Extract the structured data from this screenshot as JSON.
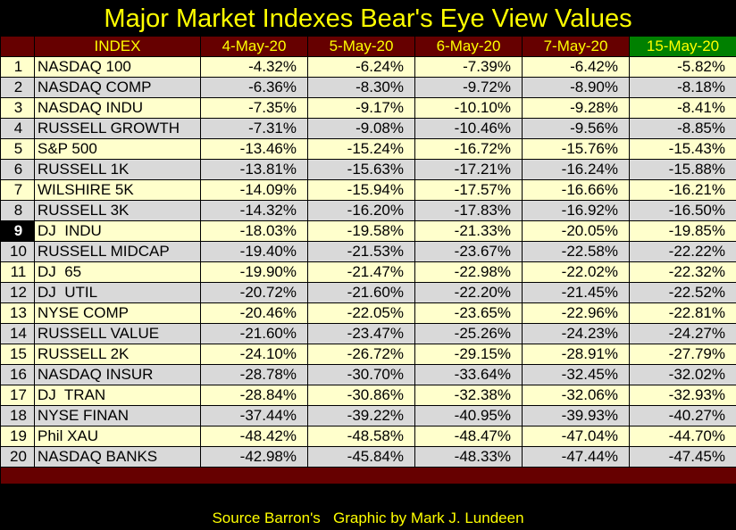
{
  "title": "Major Market Indexes Bear's Eye View Values",
  "colors": {
    "background": "#000000",
    "title": "#FFFF00",
    "header_bg": "#660000",
    "header_highlight_bg": "#008000",
    "row_odd": "#FFFFCC",
    "row_even": "#D9D9D9"
  },
  "footer": {
    "source": "Source Barron's",
    "credit": "Graphic by Mark J. Lundeen"
  },
  "chart_data": {
    "type": "table",
    "title": "Major Market Indexes Bear's Eye View Values",
    "columns": [
      "",
      "INDEX",
      "4-May-20",
      "5-May-20",
      "6-May-20",
      "7-May-20",
      "15-May-20"
    ],
    "highlighted_column": "15-May-20",
    "highlighted_rank": "9",
    "rows": [
      {
        "rank": "1",
        "name": "NASDAQ 100",
        "values": [
          "-4.32%",
          "-6.24%",
          "-7.39%",
          "-6.42%",
          "-5.82%"
        ]
      },
      {
        "rank": "2",
        "name": "NASDAQ COMP",
        "values": [
          "-6.36%",
          "-8.30%",
          "-9.72%",
          "-8.90%",
          "-8.18%"
        ]
      },
      {
        "rank": "3",
        "name": "NASDAQ INDU",
        "values": [
          "-7.35%",
          "-9.17%",
          "-10.10%",
          "-9.28%",
          "-8.41%"
        ]
      },
      {
        "rank": "4",
        "name": "RUSSELL GROWTH",
        "values": [
          "-7.31%",
          "-9.08%",
          "-10.46%",
          "-9.56%",
          "-8.85%"
        ]
      },
      {
        "rank": "5",
        "name": "S&P 500",
        "values": [
          "-13.46%",
          "-15.24%",
          "-16.72%",
          "-15.76%",
          "-15.43%"
        ]
      },
      {
        "rank": "6",
        "name": "RUSSELL 1K",
        "values": [
          "-13.81%",
          "-15.63%",
          "-17.21%",
          "-16.24%",
          "-15.88%"
        ]
      },
      {
        "rank": "7",
        "name": "WILSHIRE 5K",
        "values": [
          "-14.09%",
          "-15.94%",
          "-17.57%",
          "-16.66%",
          "-16.21%"
        ]
      },
      {
        "rank": "8",
        "name": "RUSSELL 3K",
        "values": [
          "-14.32%",
          "-16.20%",
          "-17.83%",
          "-16.92%",
          "-16.50%"
        ]
      },
      {
        "rank": "9",
        "name": "DJ  INDU",
        "values": [
          "-18.03%",
          "-19.58%",
          "-21.33%",
          "-20.05%",
          "-19.85%"
        ]
      },
      {
        "rank": "10",
        "name": "RUSSELL MIDCAP",
        "values": [
          "-19.40%",
          "-21.53%",
          "-23.67%",
          "-22.58%",
          "-22.22%"
        ]
      },
      {
        "rank": "11",
        "name": "DJ  65",
        "values": [
          "-19.90%",
          "-21.47%",
          "-22.98%",
          "-22.02%",
          "-22.32%"
        ]
      },
      {
        "rank": "12",
        "name": "DJ  UTIL",
        "values": [
          "-20.72%",
          "-21.60%",
          "-22.20%",
          "-21.45%",
          "-22.52%"
        ]
      },
      {
        "rank": "13",
        "name": "NYSE COMP",
        "values": [
          "-20.46%",
          "-22.05%",
          "-23.65%",
          "-22.96%",
          "-22.81%"
        ]
      },
      {
        "rank": "14",
        "name": "RUSSELL VALUE",
        "values": [
          "-21.60%",
          "-23.47%",
          "-25.26%",
          "-24.23%",
          "-24.27%"
        ]
      },
      {
        "rank": "15",
        "name": "RUSSELL 2K",
        "values": [
          "-24.10%",
          "-26.72%",
          "-29.15%",
          "-28.91%",
          "-27.79%"
        ]
      },
      {
        "rank": "16",
        "name": "NASDAQ INSUR",
        "values": [
          "-28.78%",
          "-30.70%",
          "-33.64%",
          "-32.45%",
          "-32.02%"
        ]
      },
      {
        "rank": "17",
        "name": "DJ  TRAN",
        "values": [
          "-28.84%",
          "-30.86%",
          "-32.38%",
          "-32.06%",
          "-32.93%"
        ]
      },
      {
        "rank": "18",
        "name": "NYSE FINAN",
        "values": [
          "-37.44%",
          "-39.22%",
          "-40.95%",
          "-39.93%",
          "-40.27%"
        ]
      },
      {
        "rank": "19",
        "name": "Phil XAU",
        "values": [
          "-48.42%",
          "-48.58%",
          "-48.47%",
          "-47.04%",
          "-44.70%"
        ]
      },
      {
        "rank": "20",
        "name": "NASDAQ BANKS",
        "values": [
          "-42.98%",
          "-45.84%",
          "-48.33%",
          "-47.44%",
          "-47.45%"
        ]
      }
    ]
  }
}
